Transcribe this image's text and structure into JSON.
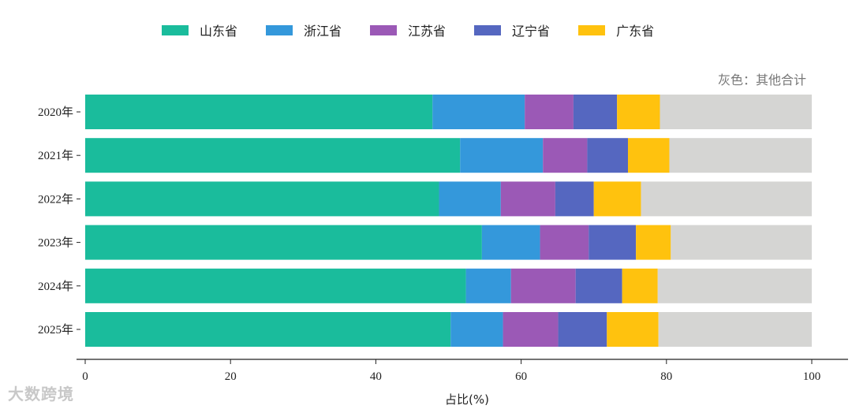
{
  "chart_data": {
    "type": "bar",
    "orientation": "horizontal",
    "stacked": true,
    "categories": [
      "2020年",
      "2021年",
      "2022年",
      "2023年",
      "2024年",
      "2025年"
    ],
    "series": [
      {
        "name": "山东省",
        "color": "#1abc9c",
        "values": [
          47.8,
          51.6,
          48.7,
          54.6,
          52.4,
          50.3
        ]
      },
      {
        "name": "浙江省",
        "color": "#3498db",
        "values": [
          12.7,
          11.4,
          8.5,
          8.0,
          6.2,
          7.2
        ]
      },
      {
        "name": "江苏省",
        "color": "#9b59b6",
        "values": [
          6.7,
          6.1,
          7.5,
          6.7,
          8.9,
          7.6
        ]
      },
      {
        "name": "辽宁省",
        "color": "#5567c0",
        "values": [
          6.0,
          5.6,
          5.3,
          6.5,
          6.4,
          6.7
        ]
      },
      {
        "name": "广东省",
        "color": "#ffc20e",
        "values": [
          5.9,
          5.7,
          6.5,
          4.8,
          4.9,
          7.1
        ]
      },
      {
        "name": "其他合计",
        "color": "#d5d5d3",
        "values": [
          20.9,
          19.6,
          23.5,
          19.4,
          21.2,
          21.1
        ]
      }
    ],
    "xlabel": "占比(%)",
    "xlim": [
      0,
      100
    ],
    "xticks": [
      0,
      20,
      40,
      60,
      80,
      100
    ],
    "legend_position": "top",
    "grid": false
  },
  "note": "灰色：其他合计",
  "watermark": "大数跨境"
}
